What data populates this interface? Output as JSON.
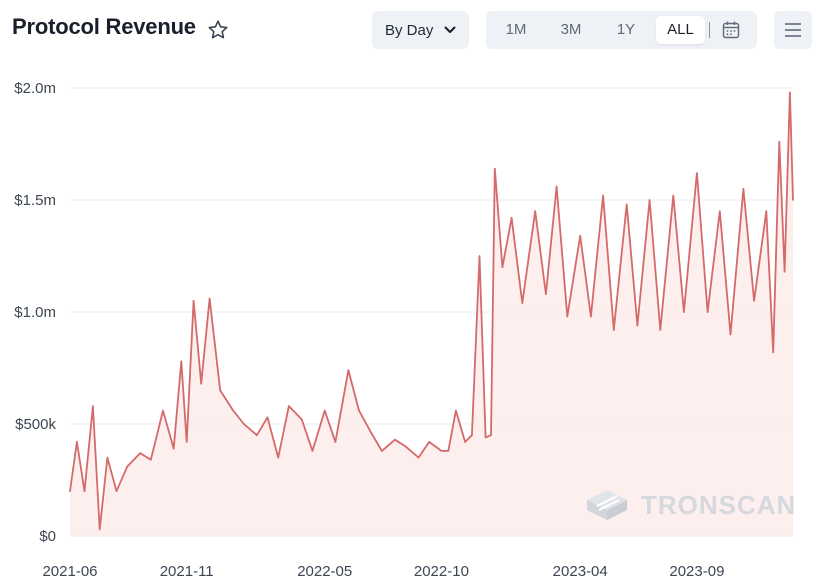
{
  "header": {
    "title": "Protocol Revenue",
    "interval_label": "By Day",
    "ranges": [
      "1M",
      "3M",
      "1Y",
      "ALL"
    ],
    "active_range": "ALL",
    "icons": [
      "star-icon",
      "chevron-down-icon",
      "calendar-icon",
      "menu-icon"
    ]
  },
  "watermark": "TRONSCAN",
  "chart_data": {
    "type": "area",
    "title": "Protocol Revenue",
    "xlabel": "",
    "ylabel": "",
    "x_tick_labels": [
      "2021-06",
      "2021-11",
      "2022-05",
      "2022-10",
      "2023-04",
      "2023-09"
    ],
    "y_tick_labels": [
      "$0",
      "$500k",
      "$1.0m",
      "$1.5m",
      "$2.0m"
    ],
    "ylim": [
      0,
      2000000
    ],
    "xlim": [
      "2021-06-01",
      "2024-01-05"
    ],
    "grid": true,
    "line_color": "#d46a6a",
    "fill_color": "#fcebea",
    "series": [
      {
        "x": [
          "2021-06-01",
          "2021-06-10",
          "2021-06-20",
          "2021-07-01",
          "2021-07-10",
          "2021-07-20",
          "2021-08-01",
          "2021-08-15",
          "2021-09-01",
          "2021-09-15",
          "2021-10-01",
          "2021-10-15",
          "2021-10-25",
          "2021-11-01",
          "2021-11-10",
          "2021-11-20",
          "2021-12-01",
          "2021-12-15",
          "2022-01-01",
          "2022-01-15",
          "2022-02-01",
          "2022-02-15",
          "2022-03-01",
          "2022-03-15",
          "2022-04-01",
          "2022-04-15",
          "2022-05-01",
          "2022-05-15",
          "2022-06-01",
          "2022-06-15",
          "2022-07-01",
          "2022-07-15",
          "2022-08-01",
          "2022-08-15",
          "2022-09-01",
          "2022-09-15",
          "2022-10-01",
          "2022-10-10",
          "2022-10-20",
          "2022-11-01",
          "2022-11-10",
          "2022-11-20",
          "2022-11-28",
          "2022-12-05",
          "2022-12-10",
          "2022-12-20",
          "2023-01-01",
          "2023-01-15",
          "2023-02-01",
          "2023-02-15",
          "2023-03-01",
          "2023-03-15",
          "2023-04-01",
          "2023-04-15",
          "2023-05-01",
          "2023-05-15",
          "2023-06-01",
          "2023-06-15",
          "2023-07-01",
          "2023-07-15",
          "2023-08-01",
          "2023-08-15",
          "2023-09-01",
          "2023-09-15",
          "2023-10-01",
          "2023-10-15",
          "2023-11-01",
          "2023-11-15",
          "2023-12-01",
          "2023-12-10",
          "2023-12-18",
          "2023-12-25",
          "2024-01-01",
          "2024-01-05"
        ],
        "values": [
          200000,
          420000,
          200000,
          580000,
          30000,
          350000,
          200000,
          310000,
          370000,
          340000,
          560000,
          390000,
          780000,
          420000,
          1050000,
          680000,
          1060000,
          650000,
          560000,
          500000,
          450000,
          530000,
          350000,
          580000,
          520000,
          380000,
          560000,
          420000,
          740000,
          560000,
          460000,
          380000,
          430000,
          400000,
          350000,
          420000,
          380000,
          380000,
          560000,
          420000,
          450000,
          1250000,
          440000,
          450000,
          1640000,
          1200000,
          1420000,
          1040000,
          1450000,
          1080000,
          1560000,
          980000,
          1340000,
          980000,
          1520000,
          920000,
          1480000,
          940000,
          1500000,
          920000,
          1520000,
          1000000,
          1620000,
          1000000,
          1450000,
          900000,
          1550000,
          1050000,
          1450000,
          820000,
          1760000,
          1180000,
          1980000,
          1500000
        ]
      }
    ]
  }
}
